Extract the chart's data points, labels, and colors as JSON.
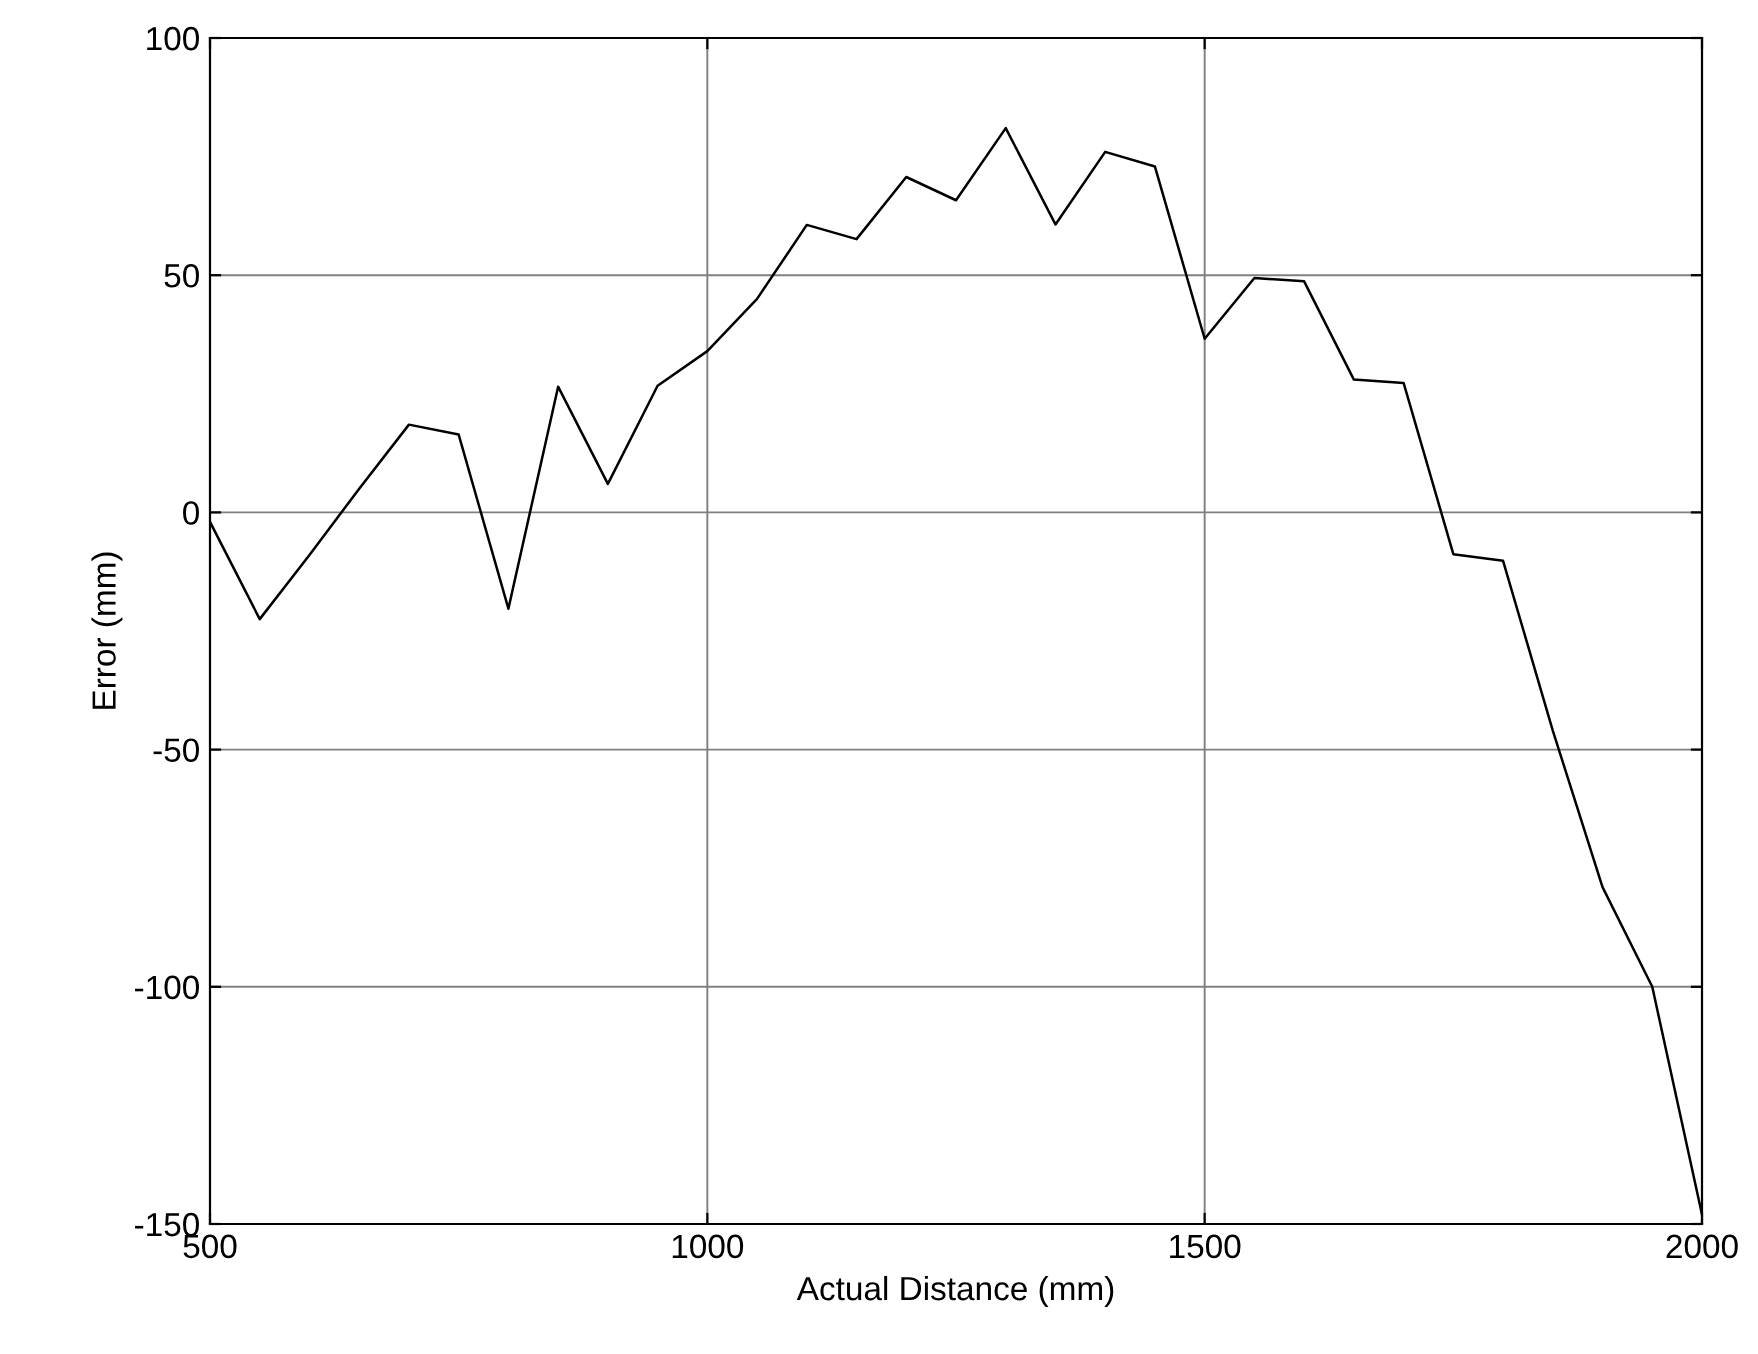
{
  "chart_data": {
    "type": "line",
    "xlabel": "Actual Distance (mm)",
    "ylabel": "Error (mm)",
    "x": [
      500,
      550,
      600,
      650,
      700,
      750,
      800,
      850,
      900,
      950,
      1000,
      1050,
      1100,
      1150,
      1200,
      1250,
      1300,
      1350,
      1400,
      1450,
      1500,
      1550,
      1600,
      1650,
      1700,
      1750,
      1800,
      1850,
      1900,
      1950,
      2000
    ],
    "series": [
      {
        "color": "#000000",
        "values": [
          -2,
          -22.5,
          -9,
          5,
          18.5,
          16.4,
          -20.3,
          26.5,
          6,
          26.7,
          34,
          45,
          60.6,
          57.6,
          70.7,
          65.8,
          81,
          60.7,
          76,
          72.9,
          36.6,
          49.4,
          48.7,
          28,
          27.3,
          -8.8,
          -10.2,
          -46,
          -79,
          -100,
          -148
        ]
      }
    ],
    "xlim": [
      500,
      2000
    ],
    "ylim": [
      -150,
      100
    ],
    "xticks": [
      500,
      1000,
      1500,
      2000
    ],
    "yticks": [
      -150,
      -100,
      -50,
      0,
      50,
      100
    ],
    "grid": true
  }
}
